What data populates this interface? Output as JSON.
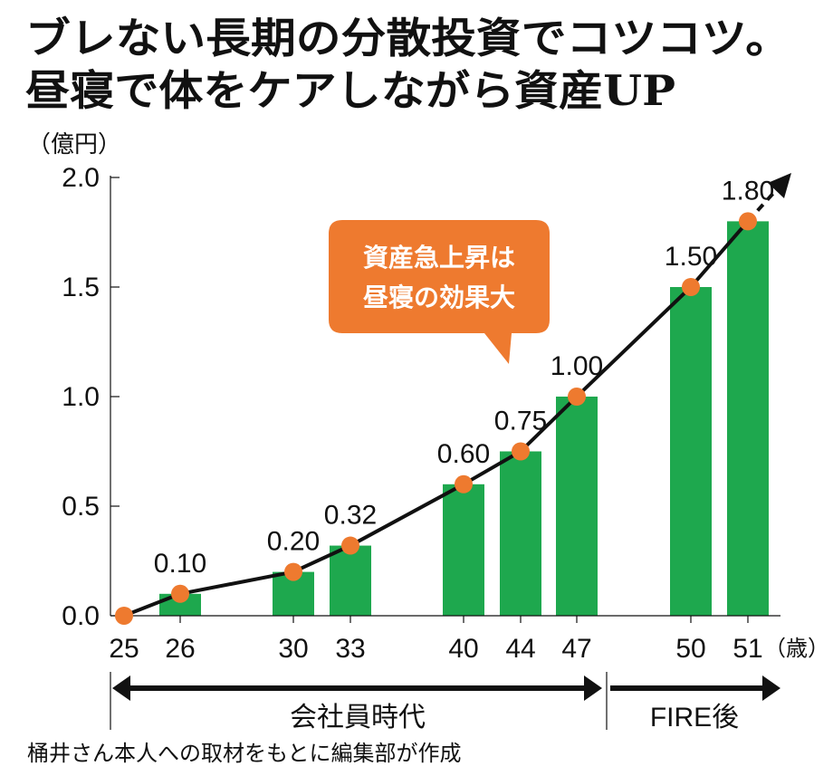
{
  "title_lines": [
    "ブレない長期の分散投資でコツコツ。",
    "昼寝で体をケアしながら資産UP"
  ],
  "chart_data": {
    "type": "bar",
    "y_unit_label": "（億円）",
    "x_unit_label": "（歳）",
    "ylim": [
      0,
      2.0
    ],
    "y_ticks": [
      "0.0",
      "0.5",
      "1.0",
      "1.5",
      "2.0"
    ],
    "categories": [
      "25",
      "26",
      "30",
      "33",
      "40",
      "44",
      "47",
      "50",
      "51"
    ],
    "values": [
      0,
      0.1,
      0.2,
      0.32,
      0.6,
      0.75,
      1.0,
      1.5,
      1.8
    ],
    "data_labels": [
      "",
      "0.10",
      "0.20",
      "0.32",
      "0.60",
      "0.75",
      "1.00",
      "1.50",
      "1.80"
    ],
    "line_overlay": true,
    "trend_arrow": "dashed continuation beyond 51",
    "annotation": [
      "資産急上昇は",
      "昼寝の効果大"
    ],
    "periods": [
      {
        "label": "会社員時代",
        "from": "25",
        "to": "47"
      },
      {
        "label": "FIRE後",
        "from": "47",
        "to": "51+"
      }
    ],
    "colors": {
      "bar": "#1ea84e",
      "point": "#ee7a2f",
      "line": "#111111",
      "callout": "#ee7a2f"
    }
  },
  "source_note": "桶井さん本人への取材をもとに編集部が作成"
}
